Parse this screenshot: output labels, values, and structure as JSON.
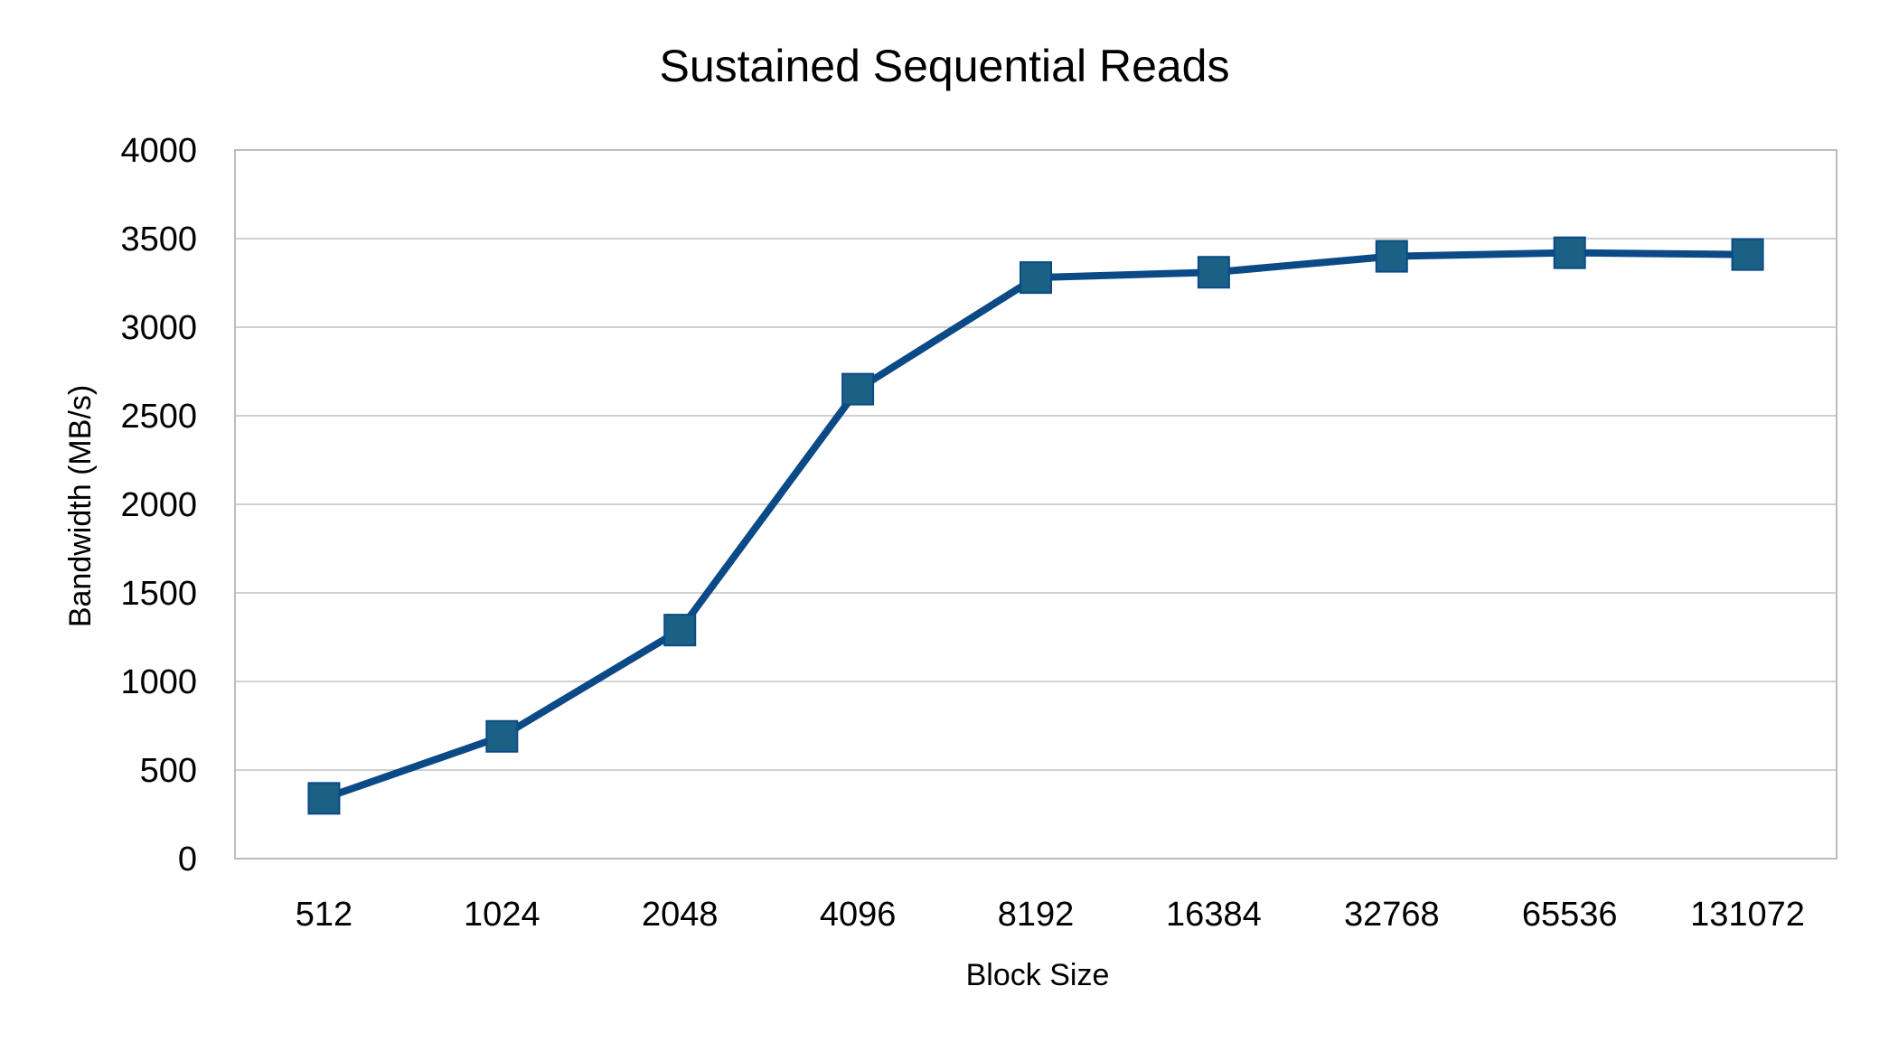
{
  "chart_data": {
    "type": "line",
    "title": "Sustained Sequential Reads",
    "xlabel": "Block Size",
    "ylabel": "Bandwidth (MB/s)",
    "ylim": [
      0,
      4000
    ],
    "yticks": [
      0,
      500,
      1000,
      1500,
      2000,
      2500,
      3000,
      3500,
      4000
    ],
    "categories": [
      "512",
      "1024",
      "2048",
      "4096",
      "8192",
      "16384",
      "32768",
      "65536",
      "131072"
    ],
    "series": [
      {
        "values": [
          340,
          690,
          1290,
          2650,
          3280,
          3310,
          3400,
          3420,
          3410
        ],
        "line_color": "#0b4a86",
        "marker": "square",
        "marker_color": "#1a6185"
      }
    ],
    "grid": true,
    "legend": "none"
  }
}
